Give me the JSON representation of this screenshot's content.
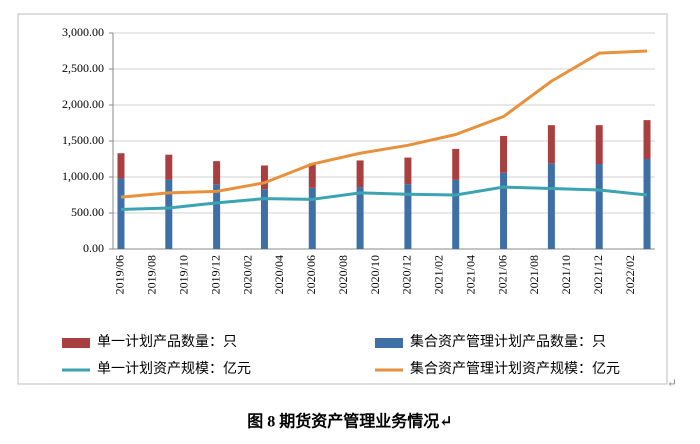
{
  "chart_data": {
    "type": "combo",
    "title": "图 8   期货资产管理业务情况↵",
    "annotations": [
      "↵"
    ],
    "stacked": true,
    "grid": true,
    "legend": "bottom",
    "categories": [
      "2019/06",
      null,
      "2019/08",
      null,
      "2019/10",
      null,
      "2019/12",
      null,
      "2020/02",
      null,
      "2020/04",
      null,
      "2020/06",
      null,
      "2020/08",
      null,
      "2020/10",
      null,
      "2020/12",
      null,
      "2021/02",
      null,
      "2021/04",
      null,
      "2021/06",
      null,
      "2021/08",
      null,
      "2021/10",
      null,
      "2021/12",
      null,
      "2022/02",
      null
    ],
    "ylim": [
      0,
      3000
    ],
    "yticks": [
      {
        "value": 0,
        "label": "0.00"
      },
      {
        "value": 500,
        "label": "500.00"
      },
      {
        "value": 1000,
        "label": "1,000.00"
      },
      {
        "value": 1500,
        "label": "1,500.00"
      },
      {
        "value": 2000,
        "label": "2,000.00"
      },
      {
        "value": 2500,
        "label": "2,500.00"
      },
      {
        "value": 3000,
        "label": "3,000.00"
      }
    ],
    "series": [
      {
        "name": "单一计划产品数量：只",
        "type": "bar",
        "color": "#a9403f",
        "values": [
          350,
          null,
          null,
          350,
          null,
          null,
          320,
          null,
          null,
          330,
          null,
          null,
          340,
          null,
          null,
          370,
          null,
          null,
          370,
          null,
          null,
          430,
          null,
          null,
          510,
          null,
          null,
          530,
          null,
          null,
          540,
          null,
          null,
          540
        ]
      },
      {
        "name": "集合资产管理计划产品数量：只",
        "type": "bar",
        "color": "#3e6fa6",
        "values": [
          980,
          null,
          null,
          960,
          null,
          null,
          900,
          null,
          null,
          830,
          null,
          null,
          850,
          null,
          null,
          860,
          null,
          null,
          900,
          null,
          null,
          960,
          null,
          null,
          1060,
          null,
          null,
          1190,
          null,
          null,
          1180,
          null,
          null,
          1250
        ]
      },
      {
        "name": "单一计划资产规模：亿元",
        "type": "line",
        "color": "#3ba3b2",
        "values": [
          550,
          null,
          null,
          570,
          null,
          null,
          640,
          null,
          null,
          700,
          null,
          null,
          690,
          null,
          null,
          780,
          null,
          null,
          760,
          null,
          null,
          750,
          null,
          null,
          860,
          null,
          null,
          840,
          null,
          null,
          820,
          null,
          null,
          750
        ]
      },
      {
        "name": "集合资产管理计划资产规模：亿元",
        "type": "line",
        "color": "#e8913c",
        "values": [
          720,
          null,
          null,
          780,
          null,
          null,
          800,
          null,
          null,
          920,
          null,
          null,
          1180,
          null,
          null,
          1330,
          null,
          null,
          1440,
          null,
          null,
          1590,
          null,
          null,
          1840,
          null,
          null,
          2330,
          null,
          null,
          2720,
          null,
          null,
          2750
        ]
      }
    ]
  }
}
